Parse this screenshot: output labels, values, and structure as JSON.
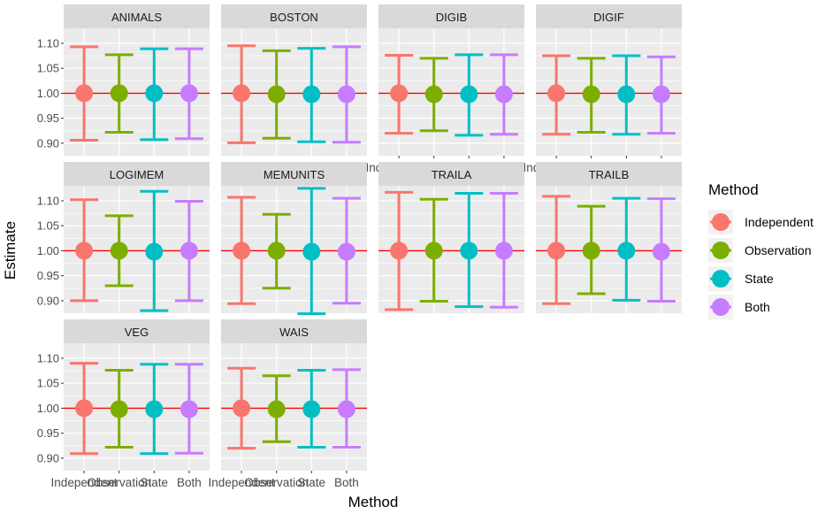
{
  "chart_data": {
    "type": "scatter",
    "subtype": "point-with-errorbars, faceted",
    "xlabel": "Method",
    "ylabel": "Estimate",
    "categories": [
      "Independent",
      "Observation",
      "State",
      "Both"
    ],
    "ylim": [
      0.875,
      1.13
    ],
    "yticks": [
      0.9,
      0.95,
      1.0,
      1.05,
      1.1
    ],
    "yticks_labels": [
      "0.90",
      "0.95",
      "1.00",
      "1.05",
      "1.10"
    ],
    "reference_line": 1.0,
    "reference_color": "#ff0000",
    "colors": {
      "Independent": "#F8766D",
      "Observation": "#7CAE00",
      "State": "#00BFC4",
      "Both": "#C77CFF"
    },
    "legend": {
      "title": "Method",
      "position": "right",
      "entries": [
        "Independent",
        "Observation",
        "State",
        "Both"
      ]
    },
    "grid": true,
    "panel_background": "#EBEBEB",
    "strip_background": "#D9D9D9",
    "facets": [
      {
        "name": "ANIMALS",
        "estimate": [
          1.0,
          1.0,
          1.0,
          1.0
        ],
        "lower": [
          0.906,
          0.922,
          0.907,
          0.909
        ],
        "upper": [
          1.093,
          1.077,
          1.089,
          1.089
        ]
      },
      {
        "name": "BOSTON",
        "estimate": [
          1.0,
          0.998,
          0.998,
          0.998
        ],
        "lower": [
          0.901,
          0.91,
          0.903,
          0.902
        ],
        "upper": [
          1.095,
          1.085,
          1.09,
          1.093
        ]
      },
      {
        "name": "DIGIB",
        "estimate": [
          1.0,
          0.998,
          0.998,
          0.998
        ],
        "lower": [
          0.92,
          0.925,
          0.916,
          0.918
        ],
        "upper": [
          1.076,
          1.07,
          1.077,
          1.077
        ]
      },
      {
        "name": "DIGIF",
        "estimate": [
          1.0,
          0.998,
          0.998,
          0.998
        ],
        "lower": [
          0.918,
          0.922,
          0.918,
          0.92
        ],
        "upper": [
          1.075,
          1.07,
          1.075,
          1.073
        ]
      },
      {
        "name": "LOGIMEM",
        "estimate": [
          1.0,
          1.0,
          0.998,
          1.0
        ],
        "lower": [
          0.9,
          0.93,
          0.88,
          0.9
        ],
        "upper": [
          1.102,
          1.07,
          1.119,
          1.099
        ]
      },
      {
        "name": "MEMUNITS",
        "estimate": [
          1.0,
          1.0,
          0.998,
          0.998
        ],
        "lower": [
          0.894,
          0.925,
          0.874,
          0.895
        ],
        "upper": [
          1.107,
          1.073,
          1.125,
          1.105
        ]
      },
      {
        "name": "TRAILA",
        "estimate": [
          1.0,
          1.0,
          1.0,
          1.0
        ],
        "lower": [
          0.882,
          0.899,
          0.888,
          0.887
        ],
        "upper": [
          1.117,
          1.103,
          1.115,
          1.115
        ]
      },
      {
        "name": "TRAILB",
        "estimate": [
          1.0,
          1.0,
          1.0,
          0.998
        ],
        "lower": [
          0.894,
          0.914,
          0.901,
          0.899
        ],
        "upper": [
          1.109,
          1.089,
          1.105,
          1.104
        ]
      },
      {
        "name": "VEG",
        "estimate": [
          1.0,
          0.998,
          0.998,
          0.998
        ],
        "lower": [
          0.909,
          0.922,
          0.909,
          0.91
        ],
        "upper": [
          1.09,
          1.076,
          1.088,
          1.088
        ]
      },
      {
        "name": "WAIS",
        "estimate": [
          1.0,
          0.998,
          0.998,
          0.998
        ],
        "lower": [
          0.92,
          0.933,
          0.922,
          0.922
        ],
        "upper": [
          1.08,
          1.065,
          1.076,
          1.077
        ]
      }
    ],
    "x_axis_facets": [
      "DIGIB",
      "DIGIF",
      "VEG",
      "WAIS"
    ]
  }
}
